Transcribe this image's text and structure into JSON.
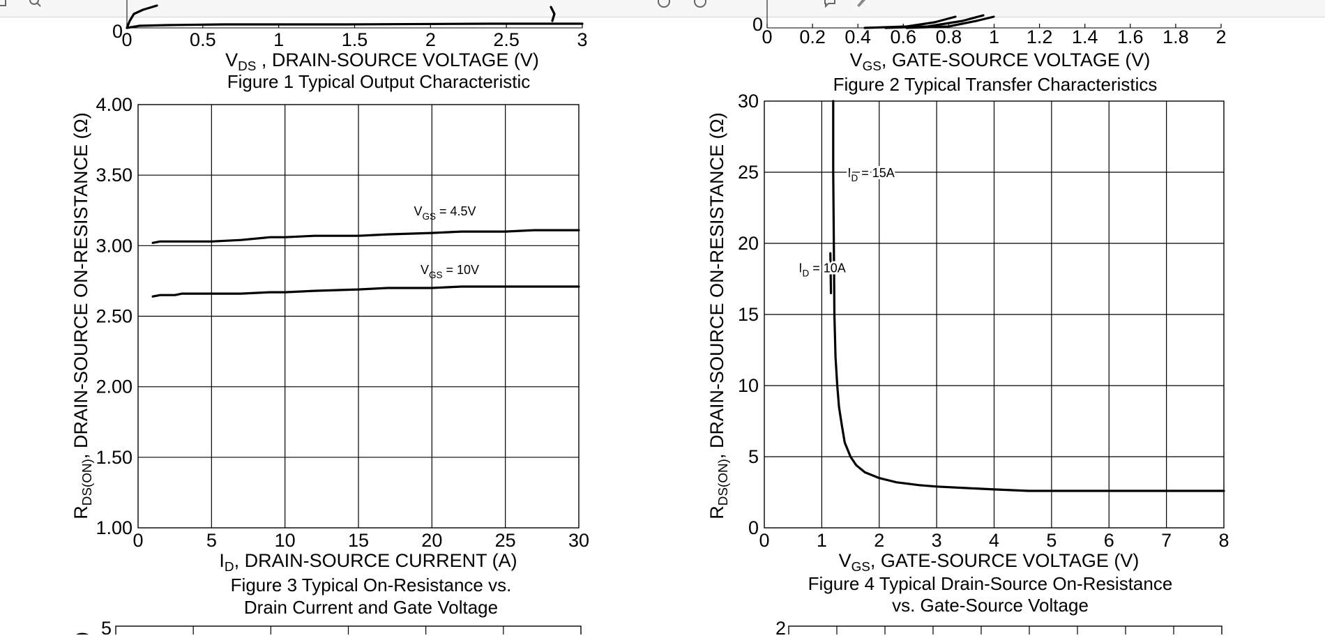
{
  "window": {
    "icons": [
      "window-icon",
      "zoom-icon",
      "rotate-left-icon",
      "rotate-right-icon",
      "comment-icon",
      "highlight-icon"
    ]
  },
  "chart_data": [
    {
      "id": "fig1",
      "type": "line",
      "partial": true,
      "x_ticks": [
        "0",
        "0.5",
        "1",
        "1.5",
        "2",
        "2.5",
        "3"
      ],
      "y_ticks": [
        "0"
      ],
      "xlabel_sym": "V",
      "xlabel_sub": "DS",
      "xlabel_rest": " , DRAIN-SOURCE VOLTAGE (V)",
      "caption": "Figure 1 Typical Output Characteristic",
      "xlim": [
        0,
        3
      ]
    },
    {
      "id": "fig2",
      "type": "line",
      "partial": true,
      "x_ticks": [
        "0",
        "0.2",
        "0.4",
        "0.6",
        "0.8",
        "1",
        "1.2",
        "1.4",
        "1.6",
        "1.8",
        "2"
      ],
      "y_ticks": [
        "0"
      ],
      "xlabel_sym": "V",
      "xlabel_sub": "GS",
      "xlabel_rest": ", GATE-SOURCE VOLTAGE (V)",
      "caption": "Figure 2 Typical Transfer Characteristics",
      "xlim": [
        0,
        2
      ]
    },
    {
      "id": "fig3",
      "type": "line",
      "xlim": [
        0,
        30
      ],
      "ylim": [
        1.0,
        4.0
      ],
      "x_ticks": [
        "0",
        "5",
        "10",
        "15",
        "20",
        "25",
        "30"
      ],
      "y_ticks": [
        "1.00",
        "1.50",
        "2.00",
        "2.50",
        "3.00",
        "3.50",
        "4.00"
      ],
      "xlabel_sym": "I",
      "xlabel_sub": "D",
      "xlabel_rest": ", DRAIN-SOURCE CURRENT (A)",
      "ylabel_sym": "R",
      "ylabel_sub": "DS(ON)",
      "ylabel_rest": ", DRAIN-SOURCE ON-RESISTANCE (Ω)",
      "caption_line1": "Figure 3 Typical On-Resistance vs.",
      "caption_line2": "Drain Current and Gate Voltage",
      "series": [
        {
          "label_sym": "V",
          "label_sub": "GS",
          "label_rest": " = 4.5V",
          "x": [
            1,
            1.5,
            2,
            3,
            5,
            7,
            9,
            10,
            12,
            14,
            15,
            17,
            20,
            22,
            25,
            27,
            30
          ],
          "y": [
            3.02,
            3.03,
            3.03,
            3.03,
            3.03,
            3.04,
            3.06,
            3.06,
            3.07,
            3.07,
            3.07,
            3.08,
            3.09,
            3.1,
            3.1,
            3.11,
            3.11
          ]
        },
        {
          "label_sym": "V",
          "label_sub": "GS",
          "label_rest": " = 10V",
          "x": [
            1,
            1.5,
            2.5,
            3,
            5,
            7,
            9,
            10,
            12,
            15,
            17,
            20,
            22,
            25,
            27,
            30
          ],
          "y": [
            2.64,
            2.65,
            2.65,
            2.66,
            2.66,
            2.66,
            2.67,
            2.67,
            2.68,
            2.69,
            2.7,
            2.7,
            2.71,
            2.71,
            2.71,
            2.71
          ]
        }
      ]
    },
    {
      "id": "fig4",
      "type": "line",
      "xlim": [
        0,
        8
      ],
      "ylim": [
        0,
        30
      ],
      "x_ticks": [
        "0",
        "1",
        "2",
        "3",
        "4",
        "5",
        "6",
        "7",
        "8"
      ],
      "y_ticks": [
        "0",
        "5",
        "10",
        "15",
        "20",
        "25",
        "30"
      ],
      "xlabel_sym": "V",
      "xlabel_sub": "GS",
      "xlabel_rest": ", GATE-SOURCE VOLTAGE (V)",
      "ylabel_sym": "R",
      "ylabel_sub": "DS(ON)",
      "ylabel_rest": ", DRAIN-SOURCE ON-RESISTANCE (Ω)",
      "caption_line1": "Figure 4 Typical Drain-Source On-Resistance",
      "caption_line2": "vs. Gate-Source Voltage",
      "annotations": [
        {
          "sym": "I",
          "sub": "D",
          "rest": " =  15A",
          "x": 1.45,
          "y": 25
        },
        {
          "sym": "I",
          "sub": "D",
          "rest": " =  10A",
          "x": 0.6,
          "y": 18.3
        }
      ],
      "series": [
        {
          "name": "",
          "x": [
            1.2,
            1.2,
            1.21,
            1.22,
            1.24,
            1.27,
            1.3,
            1.35,
            1.4,
            1.5,
            1.6,
            1.75,
            2.0,
            2.3,
            2.7,
            3.0,
            3.5,
            4.0,
            4.6,
            5.0,
            6.0,
            7.0,
            8.0
          ],
          "y": [
            30,
            25,
            20,
            15,
            12,
            10,
            8.5,
            7.2,
            6.0,
            5.0,
            4.4,
            3.9,
            3.5,
            3.2,
            3.0,
            2.9,
            2.8,
            2.7,
            2.6,
            2.6,
            2.6,
            2.6,
            2.6
          ]
        }
      ]
    },
    {
      "id": "fig5",
      "type": "line",
      "partial": true,
      "y_ticks": [
        "5"
      ]
    },
    {
      "id": "fig6",
      "type": "line",
      "partial": true,
      "y_ticks": [
        "2"
      ]
    }
  ]
}
